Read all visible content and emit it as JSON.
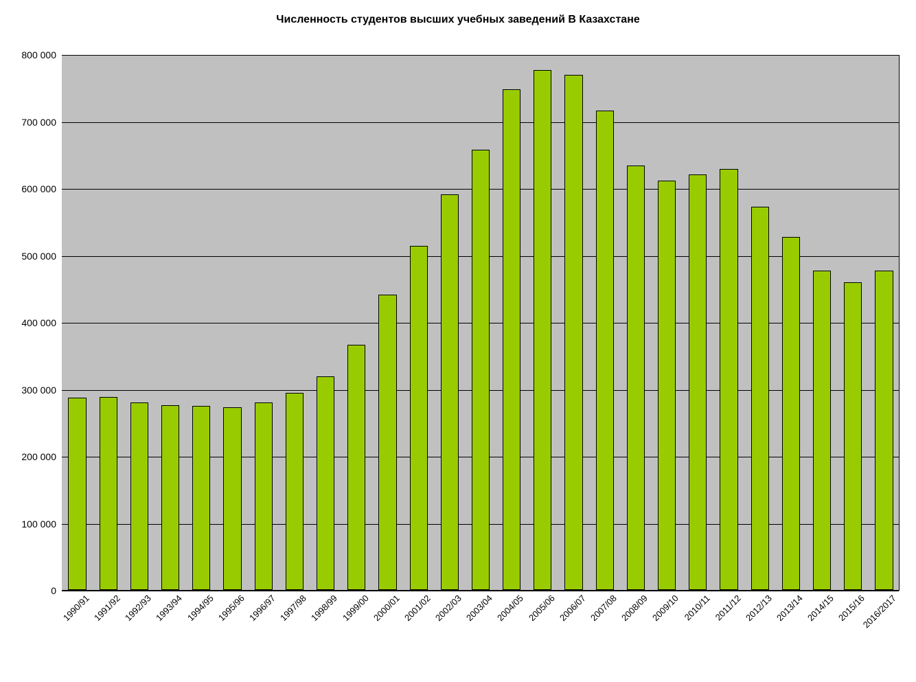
{
  "chart": {
    "type": "bar",
    "title": "Численность студентов высших учебных заведений В Казахстане",
    "title_fontsize": 16,
    "title_fontweight": "bold",
    "background_color": "#ffffff",
    "plot_background_color": "#c0c0c0",
    "grid_color": "#000000",
    "axis_color": "#000000",
    "bar_fill_color": "#99cc00",
    "bar_border_color": "#000000",
    "bar_width_ratio": 0.58,
    "label_fontsize": 14,
    "xlabel_fontsize": 13,
    "xlabel_rotation_deg": -45,
    "ylim": [
      0,
      800000
    ],
    "ytick_step": 100000,
    "ytick_labels": [
      "0",
      "100 000",
      "200 000",
      "300 000",
      "400 000",
      "500 000",
      "600 000",
      "700 000",
      "800 000"
    ],
    "categories": [
      "1990/91",
      "1991/92",
      "1992/93",
      "1993/94",
      "1994/95",
      "1995/96",
      "1996/97",
      "1997/98",
      "1998/99",
      "1999/00",
      "2000/01",
      "2001/02",
      "2002/03",
      "2003/04",
      "2004/05",
      "2005/06",
      "2006/07",
      "2007/08",
      "2008/09",
      "2009/10",
      "2010/11",
      "2011/12",
      "2012/13",
      "2013/14",
      "2014/15",
      "2015/16",
      "2016/2017"
    ],
    "values": [
      287000,
      288000,
      280000,
      276000,
      275000,
      273000,
      280000,
      294000,
      319000,
      366000,
      441000,
      514000,
      591000,
      657000,
      748000,
      776000,
      769000,
      716000,
      634000,
      611000,
      621000,
      629000,
      572000,
      527000,
      477000,
      459000,
      477000
    ]
  }
}
